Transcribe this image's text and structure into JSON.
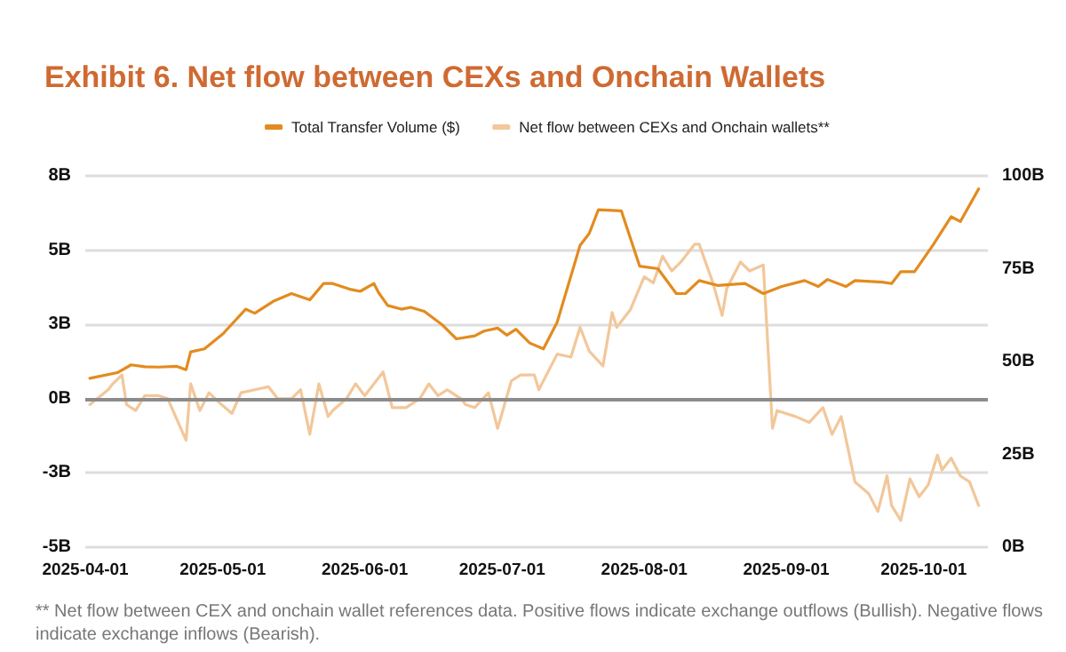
{
  "chart_data": {
    "type": "line",
    "title": "Exhibit 6. Net flow between CEXs and Onchain Wallets",
    "annotations": [
      "** Net flow between CEX and onchain wallet references data. Positive flows indicate exchange outflows (Bullish). Negative flows indicate exchange inflows (Bearish)."
    ],
    "xlim": [
      "2025-04-01",
      "2025-10-15"
    ],
    "xticks": [
      "2025-04-01",
      "2025-05-01",
      "2025-06-01",
      "2025-07-01",
      "2025-08-01",
      "2025-09-01",
      "2025-10-01"
    ],
    "ylim": [
      -5,
      7.5
    ],
    "yticks": [
      {
        "value": -5,
        "label": "-5B"
      },
      {
        "value": -2.5,
        "label": "-3B"
      },
      {
        "value": 0,
        "label": "0B"
      },
      {
        "value": 2.5,
        "label": "3B"
      },
      {
        "value": 5,
        "label": "5B"
      },
      {
        "value": 7.5,
        "label": "8B"
      }
    ],
    "y2lim": [
      0,
      100
    ],
    "y2ticks": [
      {
        "value": 0,
        "label": "0B"
      },
      {
        "value": 25,
        "label": "25B"
      },
      {
        "value": 50,
        "label": "50B"
      },
      {
        "value": 75,
        "label": "75B"
      },
      {
        "value": 100,
        "label": "100B"
      }
    ],
    "grid": "y",
    "legend": "top",
    "marker": "none",
    "line_style": "solid",
    "ref_lines": [
      {
        "axis": "y",
        "value": 0,
        "label": null,
        "color": "#8c8c8c"
      }
    ],
    "series": [
      {
        "name": "Total Transfer Volume ($)",
        "color": "#e38b1f",
        "axis": "y2",
        "x": [
          "2025-04-02",
          "2025-04-08",
          "2025-04-11",
          "2025-04-14",
          "2025-04-17",
          "2025-04-21",
          "2025-04-23",
          "2025-04-24",
          "2025-04-27",
          "2025-05-01",
          "2025-05-06",
          "2025-05-08",
          "2025-05-12",
          "2025-05-16",
          "2025-05-20",
          "2025-05-23",
          "2025-05-25",
          "2025-05-29",
          "2025-05-31",
          "2025-06-03",
          "2025-06-04",
          "2025-06-06",
          "2025-06-09",
          "2025-06-11",
          "2025-06-14",
          "2025-06-18",
          "2025-06-21",
          "2025-06-25",
          "2025-06-27",
          "2025-06-30",
          "2025-07-02",
          "2025-07-04",
          "2025-07-07",
          "2025-07-10",
          "2025-07-13",
          "2025-07-18",
          "2025-07-20",
          "2025-07-22",
          "2025-07-27",
          "2025-07-31",
          "2025-08-04",
          "2025-08-08",
          "2025-08-10",
          "2025-08-13",
          "2025-08-17",
          "2025-08-23",
          "2025-08-27",
          "2025-08-31",
          "2025-09-05",
          "2025-09-08",
          "2025-09-10",
          "2025-09-14",
          "2025-09-16",
          "2025-09-22",
          "2025-09-24",
          "2025-09-26",
          "2025-09-29",
          "2025-10-03",
          "2025-10-07",
          "2025-10-09",
          "2025-10-13"
        ],
        "values": [
          45.5,
          47.0,
          49.1,
          48.6,
          48.5,
          48.7,
          47.8,
          52.6,
          53.4,
          57.4,
          64.1,
          63.0,
          66.2,
          68.3,
          66.6,
          71.0,
          71.0,
          69.4,
          68.9,
          71.0,
          68.6,
          65.1,
          64.1,
          64.6,
          63.5,
          59.8,
          56.1,
          56.9,
          58.2,
          59.0,
          57.1,
          58.7,
          55.0,
          53.4,
          60.6,
          81.3,
          84.5,
          90.9,
          90.6,
          75.7,
          75.0,
          68.3,
          68.3,
          71.8,
          70.5,
          71.0,
          68.3,
          70.2,
          71.8,
          70.2,
          72.1,
          70.2,
          71.8,
          71.4,
          71.0,
          74.2,
          74.2,
          81.3,
          89.0,
          87.7,
          96.5
        ]
      },
      {
        "name": "Net flow between CEXs and Onchain wallets**",
        "color": "#f2c79a",
        "x": [
          "2025-04-02",
          "2025-04-06",
          "2025-04-07",
          "2025-04-09",
          "2025-04-10",
          "2025-04-12",
          "2025-04-14",
          "2025-04-17",
          "2025-04-19",
          "2025-04-23",
          "2025-04-24",
          "2025-04-26",
          "2025-04-28",
          "2025-04-30",
          "2025-05-03",
          "2025-05-05",
          "2025-05-08",
          "2025-05-11",
          "2025-05-13",
          "2025-05-16",
          "2025-05-18",
          "2025-05-20",
          "2025-05-22",
          "2025-05-24",
          "2025-05-25",
          "2025-05-28",
          "2025-05-30",
          "2025-06-01",
          "2025-06-05",
          "2025-06-07",
          "2025-06-10",
          "2025-06-13",
          "2025-06-15",
          "2025-06-17",
          "2025-06-19",
          "2025-06-22",
          "2025-06-23",
          "2025-06-25",
          "2025-06-28",
          "2025-06-30",
          "2025-07-03",
          "2025-07-05",
          "2025-07-08",
          "2025-07-09",
          "2025-07-13",
          "2025-07-16",
          "2025-07-18",
          "2025-07-20",
          "2025-07-23",
          "2025-07-25",
          "2025-07-26",
          "2025-07-29",
          "2025-08-01",
          "2025-08-03",
          "2025-08-05",
          "2025-08-07",
          "2025-08-09",
          "2025-08-12",
          "2025-08-13",
          "2025-08-16",
          "2025-08-18",
          "2025-08-19",
          "2025-08-22",
          "2025-08-24",
          "2025-08-27",
          "2025-08-29",
          "2025-08-30",
          "2025-09-03",
          "2025-09-06",
          "2025-09-09",
          "2025-09-11",
          "2025-09-13",
          "2025-09-16",
          "2025-09-19",
          "2025-09-21",
          "2025-09-23",
          "2025-09-24",
          "2025-09-26",
          "2025-09-28",
          "2025-09-30",
          "2025-10-02",
          "2025-10-04",
          "2025-10-05",
          "2025-10-07",
          "2025-10-09",
          "2025-10-11",
          "2025-10-13"
        ],
        "values": [
          -0.2,
          0.3,
          0.5,
          0.8,
          -0.2,
          -0.4,
          0.1,
          0.1,
          0.0,
          -1.4,
          0.5,
          -0.4,
          0.2,
          -0.1,
          -0.5,
          0.2,
          0.3,
          0.4,
          0.0,
          0.0,
          0.3,
          -1.2,
          0.5,
          -0.6,
          -0.4,
          0.0,
          0.5,
          0.1,
          0.9,
          -0.3,
          -0.3,
          0.0,
          0.5,
          0.1,
          0.3,
          0.0,
          -0.2,
          -0.3,
          0.2,
          -1.0,
          0.6,
          0.8,
          0.8,
          0.3,
          1.5,
          1.4,
          2.4,
          1.6,
          1.1,
          2.9,
          2.4,
          3.0,
          4.1,
          3.9,
          4.8,
          4.3,
          4.6,
          5.2,
          5.2,
          3.9,
          2.8,
          3.7,
          4.6,
          4.3,
          4.5,
          -1.0,
          -0.4,
          -0.6,
          -0.8,
          -0.3,
          -1.2,
          -0.6,
          -2.8,
          -3.2,
          -3.8,
          -2.6,
          -3.6,
          -4.1,
          -2.7,
          -3.3,
          -2.9,
          -1.9,
          -2.4,
          -2.0,
          -2.6,
          -2.8,
          -3.6
        ]
      }
    ]
  }
}
